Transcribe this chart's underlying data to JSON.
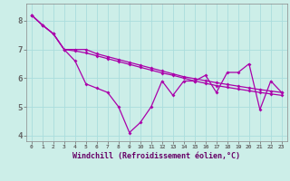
{
  "xlabel": "Windchill (Refroidissement éolien,°C)",
  "background_color": "#cceee8",
  "line_color": "#aa00aa",
  "grid_color": "#aadddd",
  "x_values": [
    0,
    1,
    2,
    3,
    4,
    5,
    6,
    7,
    8,
    9,
    10,
    11,
    12,
    13,
    14,
    15,
    16,
    17,
    18,
    19,
    20,
    21,
    22,
    23
  ],
  "line_jagged": [
    8.2,
    7.85,
    7.55,
    7.0,
    6.6,
    5.8,
    5.65,
    5.5,
    5.0,
    4.1,
    4.45,
    5.0,
    5.9,
    5.4,
    5.9,
    5.9,
    6.1,
    5.5,
    6.2,
    6.2,
    6.5,
    4.9,
    5.9,
    5.5
  ],
  "line_upper": [
    8.2,
    7.85,
    7.55,
    7.0,
    7.0,
    7.0,
    6.85,
    6.75,
    6.65,
    6.55,
    6.45,
    6.35,
    6.25,
    6.15,
    6.05,
    5.98,
    5.91,
    5.84,
    5.78,
    5.72,
    5.66,
    5.6,
    5.55,
    5.5
  ],
  "line_lower": [
    8.2,
    7.85,
    7.55,
    7.0,
    6.95,
    6.88,
    6.78,
    6.68,
    6.58,
    6.48,
    6.38,
    6.28,
    6.18,
    6.1,
    6.0,
    5.9,
    5.82,
    5.74,
    5.68,
    5.62,
    5.56,
    5.5,
    5.45,
    5.4
  ],
  "ylim": [
    3.8,
    8.6
  ],
  "yticks": [
    4,
    5,
    6,
    7,
    8
  ],
  "xticks": [
    0,
    1,
    2,
    3,
    4,
    5,
    6,
    7,
    8,
    9,
    10,
    11,
    12,
    13,
    14,
    15,
    16,
    17,
    18,
    19,
    20,
    21,
    22,
    23
  ]
}
